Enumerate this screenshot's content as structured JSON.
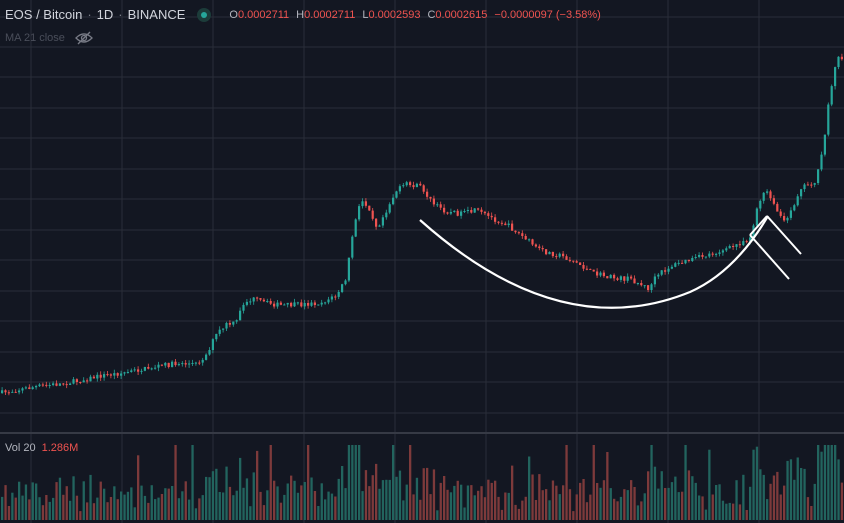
{
  "legend": {
    "symbol": "EOS / Bitcoin",
    "interval": "1D",
    "exchange": "BINANCE",
    "open_key": "O",
    "open": "0.0002711",
    "high_key": "H",
    "high": "0.0002711",
    "low_key": "L",
    "low": "0.0002593",
    "close_key": "C",
    "close": "0.0002615",
    "change": "−0.0000097 (−3.58%)"
  },
  "indicator": {
    "label": "MA 21 close",
    "visibility_icon": "eye-off-icon"
  },
  "volume": {
    "label": "Vol 20",
    "value": "1.286M"
  },
  "colors": {
    "background": "#131722",
    "grid": "#2a2e39",
    "up": "#26a69a",
    "down": "#ef5350",
    "up_volume": "#22645e",
    "down_volume": "#7d3a3b",
    "drawing": "#ffffff"
  },
  "chart_data": {
    "type": "candlestick",
    "trend": [
      [
        0,
        1.0
      ],
      [
        20,
        1.015
      ],
      [
        40,
        1.028
      ],
      [
        60,
        1.036
      ],
      [
        80,
        1.05
      ],
      [
        100,
        1.068
      ],
      [
        120,
        1.078
      ],
      [
        140,
        1.092
      ],
      [
        160,
        1.108
      ],
      [
        180,
        1.118
      ],
      [
        195,
        1.114
      ],
      [
        205,
        1.15
      ],
      [
        215,
        1.23
      ],
      [
        225,
        1.268
      ],
      [
        235,
        1.275
      ],
      [
        242,
        1.352
      ],
      [
        252,
        1.37
      ],
      [
        265,
        1.355
      ],
      [
        280,
        1.345
      ],
      [
        300,
        1.348
      ],
      [
        320,
        1.356
      ],
      [
        335,
        1.382
      ],
      [
        345,
        1.45
      ],
      [
        352,
        1.64
      ],
      [
        360,
        1.76
      ],
      [
        368,
        1.73
      ],
      [
        376,
        1.65
      ],
      [
        385,
        1.718
      ],
      [
        395,
        1.795
      ],
      [
        405,
        1.822
      ],
      [
        420,
        1.812
      ],
      [
        432,
        1.745
      ],
      [
        445,
        1.715
      ],
      [
        460,
        1.705
      ],
      [
        475,
        1.718
      ],
      [
        490,
        1.69
      ],
      [
        505,
        1.665
      ],
      [
        520,
        1.62
      ],
      [
        540,
        1.56
      ],
      [
        560,
        1.54
      ],
      [
        575,
        1.515
      ],
      [
        590,
        1.475
      ],
      [
        610,
        1.455
      ],
      [
        630,
        1.448
      ],
      [
        648,
        1.41
      ],
      [
        655,
        1.46
      ],
      [
        670,
        1.5
      ],
      [
        690,
        1.525
      ],
      [
        710,
        1.548
      ],
      [
        730,
        1.572
      ],
      [
        750,
        1.615
      ],
      [
        755,
        1.72
      ],
      [
        765,
        1.8
      ],
      [
        775,
        1.72
      ],
      [
        785,
        1.668
      ],
      [
        800,
        1.812
      ],
      [
        815,
        1.835
      ],
      [
        822,
        1.96
      ],
      [
        828,
        2.16
      ],
      [
        834,
        2.29
      ],
      [
        840,
        2.345
      ],
      [
        844,
        2.15
      ]
    ],
    "volume_scale": 1.2,
    "drawings": [
      "rounded bottom arc (cup)",
      "breakout flag lines"
    ]
  }
}
